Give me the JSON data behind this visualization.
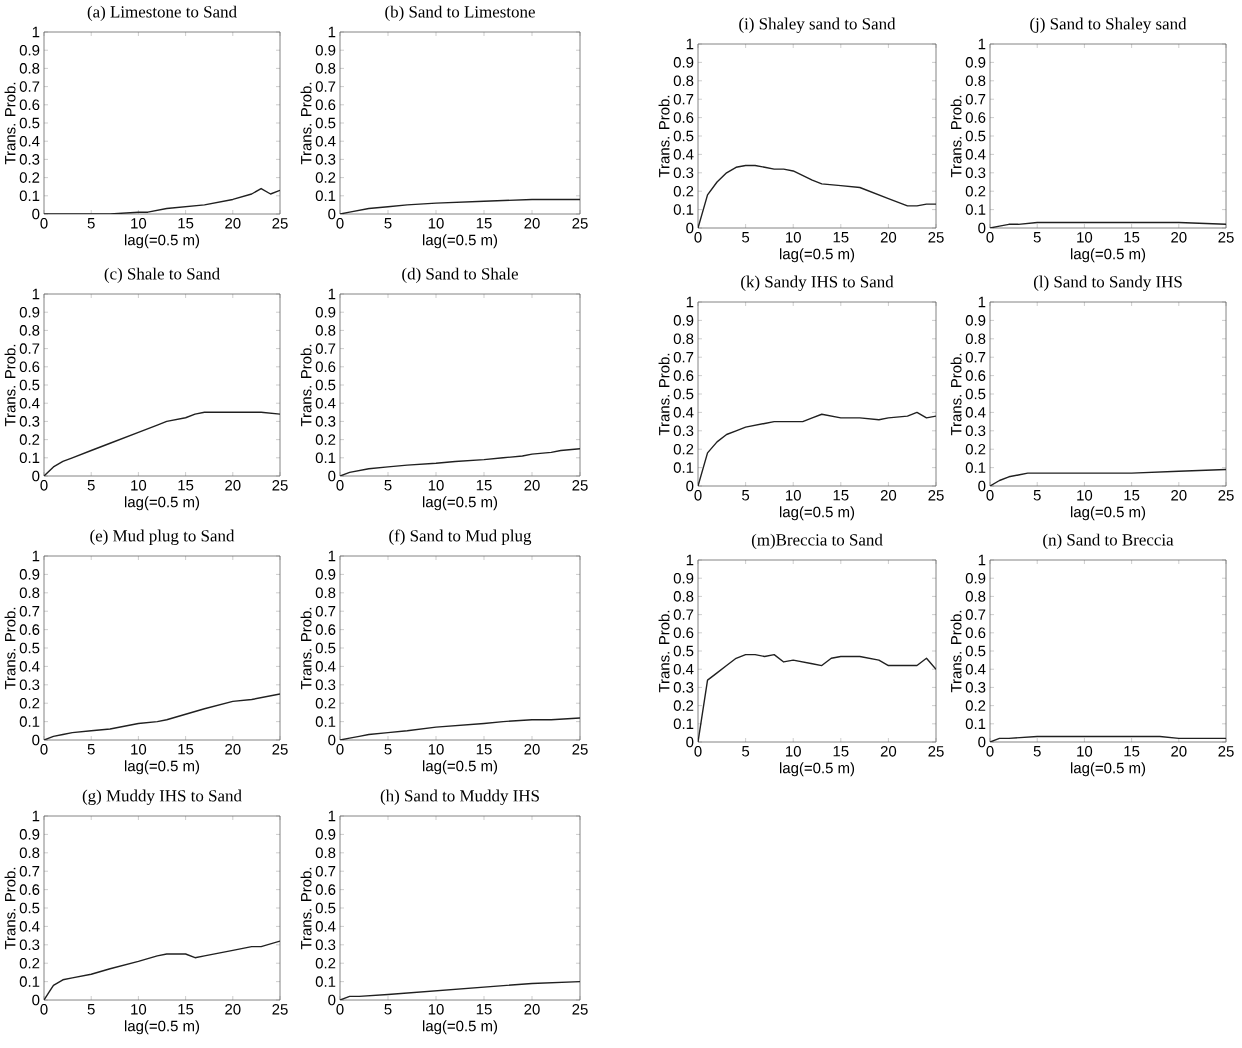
{
  "chart_data": [
    {
      "type": "line",
      "title": "(a) Limestone to Sand",
      "xlabel": "lag(=0.5 m)",
      "ylabel": "Trans. Prob.",
      "xlim": [
        0,
        25
      ],
      "ylim": [
        0,
        1
      ],
      "xticks": [
        0,
        5,
        10,
        15,
        20,
        25
      ],
      "yticks": [
        0,
        0.1,
        0.2,
        0.3,
        0.4,
        0.5,
        0.6,
        0.7,
        0.8,
        0.9,
        1
      ],
      "color": "#202020",
      "x": [
        0,
        5,
        7,
        10,
        11,
        12,
        13,
        15,
        17,
        20,
        22,
        23,
        24,
        25
      ],
      "values": [
        0,
        0,
        0,
        0.01,
        0.01,
        0.02,
        0.03,
        0.04,
        0.05,
        0.08,
        0.11,
        0.14,
        0.11,
        0.13
      ]
    },
    {
      "type": "line",
      "title": "(b) Sand to Limestone",
      "xlabel": "lag(=0.5 m)",
      "ylabel": "Trans. Prob.",
      "xlim": [
        0,
        25
      ],
      "ylim": [
        0,
        1
      ],
      "xticks": [
        0,
        5,
        10,
        15,
        20,
        25
      ],
      "yticks": [
        0,
        0.1,
        0.2,
        0.3,
        0.4,
        0.5,
        0.6,
        0.7,
        0.8,
        0.9,
        1
      ],
      "color": "#202020",
      "x": [
        0,
        1,
        2,
        3,
        5,
        7,
        10,
        15,
        20,
        25
      ],
      "values": [
        0,
        0.01,
        0.02,
        0.03,
        0.04,
        0.05,
        0.06,
        0.07,
        0.08,
        0.08
      ]
    },
    {
      "type": "line",
      "title": "(c) Shale to Sand",
      "xlabel": "lag(=0.5 m)",
      "ylabel": "Trans. Prob.",
      "xlim": [
        0,
        25
      ],
      "ylim": [
        0,
        1
      ],
      "xticks": [
        0,
        5,
        10,
        15,
        20,
        25
      ],
      "yticks": [
        0,
        0.1,
        0.2,
        0.3,
        0.4,
        0.5,
        0.6,
        0.7,
        0.8,
        0.9,
        1
      ],
      "color": "#202020",
      "x": [
        0,
        1,
        2,
        3,
        5,
        7,
        10,
        12,
        13,
        15,
        16,
        17,
        20,
        23,
        25
      ],
      "values": [
        0,
        0.05,
        0.08,
        0.1,
        0.14,
        0.18,
        0.24,
        0.28,
        0.3,
        0.32,
        0.34,
        0.35,
        0.35,
        0.35,
        0.34
      ]
    },
    {
      "type": "line",
      "title": "(d) Sand to Shale",
      "xlabel": "lag(=0.5 m)",
      "ylabel": "Trans. Prob.",
      "xlim": [
        0,
        25
      ],
      "ylim": [
        0,
        1
      ],
      "xticks": [
        0,
        5,
        10,
        15,
        20,
        25
      ],
      "yticks": [
        0,
        0.1,
        0.2,
        0.3,
        0.4,
        0.5,
        0.6,
        0.7,
        0.8,
        0.9,
        1
      ],
      "color": "#202020",
      "x": [
        0,
        1,
        2,
        3,
        5,
        7,
        10,
        12,
        15,
        17,
        19,
        20,
        22,
        23,
        25
      ],
      "values": [
        0,
        0.02,
        0.03,
        0.04,
        0.05,
        0.06,
        0.07,
        0.08,
        0.09,
        0.1,
        0.11,
        0.12,
        0.13,
        0.14,
        0.15
      ]
    },
    {
      "type": "line",
      "title": "(e) Mud plug to Sand",
      "xlabel": "lag(=0.5 m)",
      "ylabel": "Trans. Prob.",
      "xlim": [
        0,
        25
      ],
      "ylim": [
        0,
        1
      ],
      "xticks": [
        0,
        5,
        10,
        15,
        20,
        25
      ],
      "yticks": [
        0,
        0.1,
        0.2,
        0.3,
        0.4,
        0.5,
        0.6,
        0.7,
        0.8,
        0.9,
        1
      ],
      "color": "#202020",
      "x": [
        0,
        1,
        2,
        3,
        5,
        7,
        10,
        12,
        13,
        15,
        17,
        20,
        22,
        25
      ],
      "values": [
        0,
        0.02,
        0.03,
        0.04,
        0.05,
        0.06,
        0.09,
        0.1,
        0.11,
        0.14,
        0.17,
        0.21,
        0.22,
        0.25
      ]
    },
    {
      "type": "line",
      "title": "(f) Sand to Mud plug",
      "xlabel": "lag(=0.5 m)",
      "ylabel": "Trans. Prob.",
      "xlim": [
        0,
        25
      ],
      "ylim": [
        0,
        1
      ],
      "xticks": [
        0,
        5,
        10,
        15,
        20,
        25
      ],
      "yticks": [
        0,
        0.1,
        0.2,
        0.3,
        0.4,
        0.5,
        0.6,
        0.7,
        0.8,
        0.9,
        1
      ],
      "color": "#202020",
      "x": [
        0,
        1,
        2,
        3,
        5,
        7,
        10,
        15,
        17,
        20,
        22,
        25
      ],
      "values": [
        0,
        0.01,
        0.02,
        0.03,
        0.04,
        0.05,
        0.07,
        0.09,
        0.1,
        0.11,
        0.11,
        0.12
      ]
    },
    {
      "type": "line",
      "title": "(g) Muddy IHS to Sand",
      "xlabel": "lag(=0.5 m)",
      "ylabel": "Trans. Prob.",
      "xlim": [
        0,
        25
      ],
      "ylim": [
        0,
        1
      ],
      "xticks": [
        0,
        5,
        10,
        15,
        20,
        25
      ],
      "yticks": [
        0,
        0.1,
        0.2,
        0.3,
        0.4,
        0.5,
        0.6,
        0.7,
        0.8,
        0.9,
        1
      ],
      "color": "#202020",
      "x": [
        0,
        0.5,
        1,
        2,
        3,
        5,
        7,
        10,
        12,
        13,
        15,
        16,
        17,
        20,
        22,
        23,
        25
      ],
      "values": [
        0,
        0.04,
        0.08,
        0.11,
        0.12,
        0.14,
        0.17,
        0.21,
        0.24,
        0.25,
        0.25,
        0.23,
        0.24,
        0.27,
        0.29,
        0.29,
        0.32
      ]
    },
    {
      "type": "line",
      "title": "(h) Sand to Muddy IHS",
      "xlabel": "lag(=0.5 m)",
      "ylabel": "Trans. Prob.",
      "xlim": [
        0,
        25
      ],
      "ylim": [
        0,
        1
      ],
      "xticks": [
        0,
        5,
        10,
        15,
        20,
        25
      ],
      "yticks": [
        0,
        0.1,
        0.2,
        0.3,
        0.4,
        0.5,
        0.6,
        0.7,
        0.8,
        0.9,
        1
      ],
      "color": "#202020",
      "x": [
        0,
        1,
        2,
        5,
        10,
        15,
        20,
        25
      ],
      "values": [
        0,
        0.02,
        0.02,
        0.03,
        0.05,
        0.07,
        0.09,
        0.1
      ]
    },
    {
      "type": "line",
      "title": "(i) Shaley sand to Sand",
      "xlabel": "lag(=0.5 m)",
      "ylabel": "Trans. Prob.",
      "xlim": [
        0,
        25
      ],
      "ylim": [
        0,
        1
      ],
      "xticks": [
        0,
        5,
        10,
        15,
        20,
        25
      ],
      "yticks": [
        0,
        0.1,
        0.2,
        0.3,
        0.4,
        0.5,
        0.6,
        0.7,
        0.8,
        0.9,
        1
      ],
      "color": "#202020",
      "x": [
        0,
        1,
        2,
        3,
        4,
        5,
        6,
        7,
        8,
        9,
        10,
        12,
        13,
        15,
        17,
        20,
        22,
        23,
        24,
        25
      ],
      "values": [
        0,
        0.18,
        0.25,
        0.3,
        0.33,
        0.34,
        0.34,
        0.33,
        0.32,
        0.32,
        0.31,
        0.26,
        0.24,
        0.23,
        0.22,
        0.16,
        0.12,
        0.12,
        0.13,
        0.13
      ]
    },
    {
      "type": "line",
      "title": "(j) Sand to Shaley sand",
      "xlabel": "lag(=0.5 m)",
      "ylabel": "Trans. Prob.",
      "xlim": [
        0,
        25
      ],
      "ylim": [
        0,
        1
      ],
      "xticks": [
        0,
        5,
        10,
        15,
        20,
        25
      ],
      "yticks": [
        0,
        0.1,
        0.2,
        0.3,
        0.4,
        0.5,
        0.6,
        0.7,
        0.8,
        0.9,
        1
      ],
      "color": "#202020",
      "x": [
        0,
        1,
        2,
        3,
        5,
        10,
        15,
        20,
        25
      ],
      "values": [
        0,
        0.01,
        0.02,
        0.02,
        0.03,
        0.03,
        0.03,
        0.03,
        0.02
      ]
    },
    {
      "type": "line",
      "title": "(k) Sandy IHS to Sand",
      "xlabel": "lag(=0.5 m)",
      "ylabel": "Trans. Prob.",
      "xlim": [
        0,
        25
      ],
      "ylim": [
        0,
        1
      ],
      "xticks": [
        0,
        5,
        10,
        15,
        20,
        25
      ],
      "yticks": [
        0,
        0.1,
        0.2,
        0.3,
        0.4,
        0.5,
        0.6,
        0.7,
        0.8,
        0.9,
        1
      ],
      "color": "#202020",
      "x": [
        0,
        1,
        2,
        3,
        4,
        5,
        7,
        8,
        10,
        11,
        12,
        13,
        15,
        17,
        19,
        20,
        22,
        23,
        24,
        25
      ],
      "values": [
        0,
        0.18,
        0.24,
        0.28,
        0.3,
        0.32,
        0.34,
        0.35,
        0.35,
        0.35,
        0.37,
        0.39,
        0.37,
        0.37,
        0.36,
        0.37,
        0.38,
        0.4,
        0.37,
        0.38
      ]
    },
    {
      "type": "line",
      "title": "(l) Sand to Sandy IHS",
      "xlabel": "lag(=0.5 m)",
      "ylabel": "Trans. Prob.",
      "xlim": [
        0,
        25
      ],
      "ylim": [
        0,
        1
      ],
      "xticks": [
        0,
        5,
        10,
        15,
        20,
        25
      ],
      "yticks": [
        0,
        0.1,
        0.2,
        0.3,
        0.4,
        0.5,
        0.6,
        0.7,
        0.8,
        0.9,
        1
      ],
      "color": "#202020",
      "x": [
        0,
        1,
        2,
        3,
        4,
        5,
        10,
        15,
        20,
        25
      ],
      "values": [
        0,
        0.03,
        0.05,
        0.06,
        0.07,
        0.07,
        0.07,
        0.07,
        0.08,
        0.09
      ]
    },
    {
      "type": "line",
      "title": "(m)Breccia to Sand",
      "xlabel": "lag(=0.5 m)",
      "ylabel": "Trans. Prob.",
      "xlim": [
        0,
        25
      ],
      "ylim": [
        0,
        1
      ],
      "xticks": [
        0,
        5,
        10,
        15,
        20,
        25
      ],
      "yticks": [
        0,
        0.1,
        0.2,
        0.3,
        0.4,
        0.5,
        0.6,
        0.7,
        0.8,
        0.9,
        1
      ],
      "color": "#202020",
      "x": [
        0,
        1,
        2,
        3,
        4,
        5,
        6,
        7,
        8,
        9,
        10,
        12,
        13,
        14,
        15,
        17,
        19,
        20,
        22,
        23,
        24,
        25
      ],
      "values": [
        0,
        0.34,
        0.38,
        0.42,
        0.46,
        0.48,
        0.48,
        0.47,
        0.48,
        0.44,
        0.45,
        0.43,
        0.42,
        0.46,
        0.47,
        0.47,
        0.45,
        0.42,
        0.42,
        0.42,
        0.46,
        0.4
      ]
    },
    {
      "type": "line",
      "title": "(n) Sand to Breccia",
      "xlabel": "lag(=0.5 m)",
      "ylabel": "Trans. Prob.",
      "xlim": [
        0,
        25
      ],
      "ylim": [
        0,
        1
      ],
      "xticks": [
        0,
        5,
        10,
        15,
        20,
        25
      ],
      "yticks": [
        0,
        0.1,
        0.2,
        0.3,
        0.4,
        0.5,
        0.6,
        0.7,
        0.8,
        0.9,
        1
      ],
      "color": "#202020",
      "x": [
        0,
        1,
        2,
        5,
        10,
        13,
        15,
        18,
        20,
        25
      ],
      "values": [
        0,
        0.02,
        0.02,
        0.03,
        0.03,
        0.03,
        0.03,
        0.03,
        0.02,
        0.02
      ]
    }
  ]
}
